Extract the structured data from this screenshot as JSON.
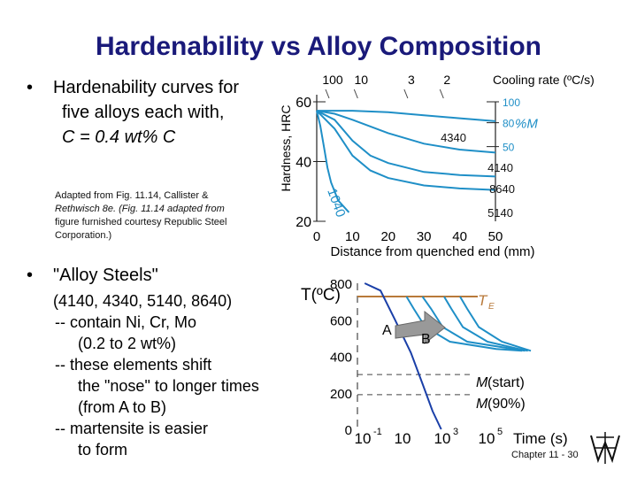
{
  "slide": {
    "title": "Hardenability vs Alloy Composition",
    "bullet1": {
      "line1": "Hardenability curves for",
      "line2": "five alloys each with,",
      "line3": "C = 0.4 wt% C"
    },
    "credit": {
      "line1": "Adapted from Fig. 11.14, Callister &",
      "line2": "Rethwisch 8e. (Fig. 11.14 adapted from",
      "line3": "figure furnished courtesy Republic Steel",
      "line4": "Corporation.)"
    },
    "bullet2": {
      "heading": "\"Alloy Steels\"",
      "l1": "(4140, 4340, 5140, 8640)",
      "l2": "-- contain Ni, Cr, Mo",
      "l3": "(0.2 to 2 wt%)",
      "l4": "-- these elements shift",
      "l5": "the \"nose\" to longer times",
      "l6": "(from A to B)",
      "l7": "-- martensite is easier",
      "l8": "to form"
    },
    "footer": "Chapter 11 - 30",
    "colors": {
      "title": "#1a1a7a",
      "curve": "#1f8fc7",
      "steel_blue": "#1a3fa8",
      "te_line": "#b8793a"
    }
  },
  "chart_data": [
    {
      "type": "line",
      "ylabel": "Hardness, HRC",
      "xlabel": "Distance from quenched end (mm)",
      "x_ticks": [
        "0",
        "10",
        "20",
        "30",
        "40",
        "50"
      ],
      "y_ticks": [
        "20",
        "40",
        "60"
      ],
      "xlim": [
        0,
        50
      ],
      "ylim": [
        20,
        60
      ],
      "top_axis": {
        "label": "Cooling rate (ºC/s)",
        "ticks": [
          "100",
          "10",
          "3",
          "2"
        ],
        "tick_positions": [
          0,
          8,
          22,
          32
        ]
      },
      "right_axis": {
        "label": "%M",
        "ticks": [
          "100",
          "80",
          "50"
        ],
        "tick_positions": [
          60,
          53,
          45
        ]
      },
      "series": [
        {
          "name": "4340",
          "x": [
            0,
            10,
            20,
            30,
            40,
            50
          ],
          "y": [
            57,
            57,
            56.5,
            55.5,
            54.5,
            53.5
          ]
        },
        {
          "name": "4140",
          "x": [
            0,
            5,
            10,
            20,
            30,
            40,
            50
          ],
          "y": [
            57,
            56,
            54,
            49.5,
            46,
            44,
            43
          ]
        },
        {
          "name": "8640",
          "x": [
            0,
            5,
            10,
            15,
            20,
            30,
            40,
            50
          ],
          "y": [
            57,
            54,
            47,
            42,
            39.5,
            36.5,
            35.5,
            35
          ]
        },
        {
          "name": "5140",
          "x": [
            0,
            5,
            10,
            15,
            20,
            30,
            40,
            50
          ],
          "y": [
            57,
            51,
            42,
            37,
            34.5,
            32,
            31,
            30.5
          ]
        },
        {
          "name": "1040",
          "x": [
            0,
            1,
            2,
            3,
            4,
            6,
            9
          ],
          "y": [
            57,
            52,
            45,
            38,
            33,
            27,
            23
          ]
        }
      ]
    },
    {
      "type": "line",
      "ylabel": "T(ºC)",
      "xlabel": "Time (s)",
      "y_ticks": [
        "0",
        "200",
        "400",
        "600",
        "800"
      ],
      "ylim": [
        0,
        800
      ],
      "x_scale": "log",
      "x_ticks": [
        {
          "base": "10",
          "exp": "-1"
        },
        {
          "base": "10",
          "exp": ""
        },
        {
          "base": "10",
          "exp": "3"
        },
        {
          "base": "10",
          "exp": "5"
        }
      ],
      "xlim": [
        -1,
        5
      ],
      "annotations": {
        "te": "T",
        "te_sub": "E",
        "a": "A",
        "b": "B",
        "ms_label": "M",
        "ms_label_rest": "(start)",
        "m90_label": "M",
        "m90_label_rest": "(90%)"
      },
      "te_level": 727,
      "ms_level": 300,
      "m90_level": 190,
      "series": [
        {
          "x": [
            0.7,
            0.95,
            1.35,
            2.2,
            3.8,
            4.7
          ],
          "y": [
            727,
            660,
            560,
            480,
            440,
            430
          ]
        },
        {
          "x": [
            1.25,
            1.55,
            1.95,
            2.8,
            4.4,
            4.8
          ],
          "y": [
            727,
            660,
            560,
            480,
            440,
            430
          ]
        },
        {
          "x": [
            2.0,
            2.25,
            2.65,
            3.5,
            4.6,
            4.9
          ],
          "y": [
            727,
            660,
            560,
            480,
            440,
            430
          ]
        },
        {
          "x": [
            2.55,
            2.8,
            3.2,
            4.0,
            4.8,
            5.0
          ],
          "y": [
            727,
            660,
            560,
            480,
            440,
            430
          ]
        },
        {
          "x": [
            -0.75,
            -0.2,
            0.3,
            0.85,
            1.25,
            1.6,
            1.9
          ],
          "y": [
            800,
            760,
            600,
            420,
            250,
            100,
            0
          ]
        }
      ]
    }
  ]
}
